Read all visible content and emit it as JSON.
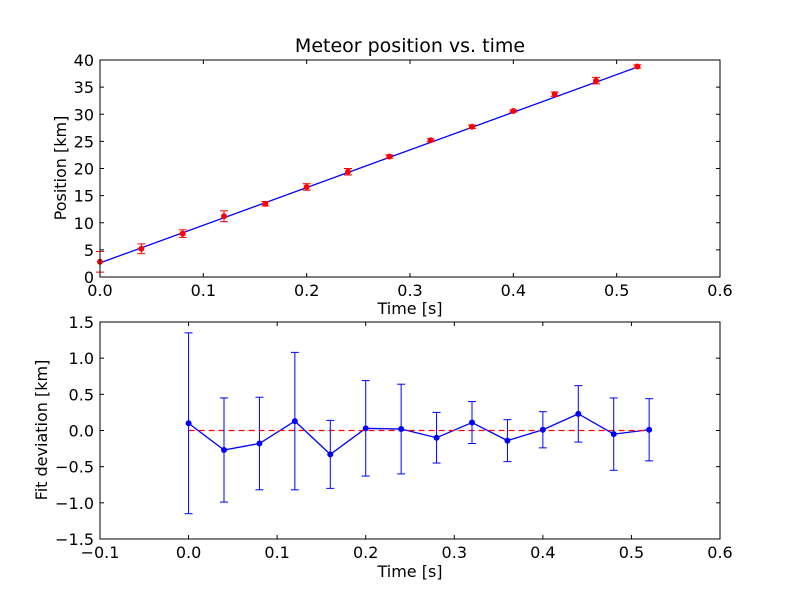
{
  "chart_data": [
    {
      "type": "scatter",
      "title": "Meteor position vs. time",
      "xlabel": "Time [s]",
      "ylabel": "Position [km]",
      "xlim": [
        0.0,
        0.6
      ],
      "ylim": [
        0,
        40
      ],
      "xticks": [
        "0.0",
        "0.1",
        "0.2",
        "0.3",
        "0.4",
        "0.5",
        "0.6"
      ],
      "yticks": [
        "0",
        "5",
        "10",
        "15",
        "20",
        "25",
        "30",
        "35",
        "40"
      ],
      "grid": false,
      "series": [
        {
          "kind": "errorbar-points",
          "color": "#ff0000",
          "x": [
            0.0,
            0.04,
            0.08,
            0.12,
            0.16,
            0.2,
            0.24,
            0.28,
            0.32,
            0.36,
            0.4,
            0.44,
            0.48,
            0.52
          ],
          "y": [
            2.8,
            5.2,
            8.0,
            11.2,
            13.5,
            16.6,
            19.4,
            22.2,
            25.2,
            27.7,
            30.6,
            33.7,
            36.2,
            38.8
          ],
          "yerr": [
            1.9,
            0.9,
            0.7,
            1.0,
            0.4,
            0.6,
            0.6,
            0.3,
            0.25,
            0.3,
            0.2,
            0.4,
            0.6,
            0.3
          ]
        },
        {
          "kind": "fit-line",
          "color": "#0000ff",
          "x": [
            0.0,
            0.52
          ],
          "y": [
            2.6,
            38.7
          ]
        }
      ]
    },
    {
      "type": "line",
      "title": "",
      "xlabel": "Time [s]",
      "ylabel": "Fit deviation [km]",
      "xlim": [
        -0.1,
        0.6
      ],
      "ylim": [
        -1.5,
        1.5
      ],
      "xticks": [
        "−0.1",
        "0.0",
        "0.1",
        "0.2",
        "0.3",
        "0.4",
        "0.5",
        "0.6"
      ],
      "yticks": [
        "−1.5",
        "−1.0",
        "−0.5",
        "0.0",
        "0.5",
        "1.0",
        "1.5"
      ],
      "grid": false,
      "series": [
        {
          "kind": "errorbar-line",
          "color": "#0000ff",
          "x": [
            0.0,
            0.04,
            0.08,
            0.12,
            0.16,
            0.2,
            0.24,
            0.28,
            0.32,
            0.36,
            0.4,
            0.44,
            0.48,
            0.52
          ],
          "y": [
            0.1,
            -0.27,
            -0.18,
            0.13,
            -0.33,
            0.03,
            0.02,
            -0.1,
            0.11,
            -0.14,
            0.01,
            0.23,
            -0.05,
            0.01
          ],
          "yerr": [
            1.25,
            0.72,
            0.64,
            0.95,
            0.47,
            0.66,
            0.62,
            0.35,
            0.29,
            0.29,
            0.25,
            0.39,
            0.5,
            0.43
          ]
        },
        {
          "kind": "zero-reference",
          "color": "#ff0000",
          "style": "dashed",
          "x": [
            0.0,
            0.52
          ],
          "y": [
            0.0,
            0.0
          ]
        }
      ]
    }
  ]
}
